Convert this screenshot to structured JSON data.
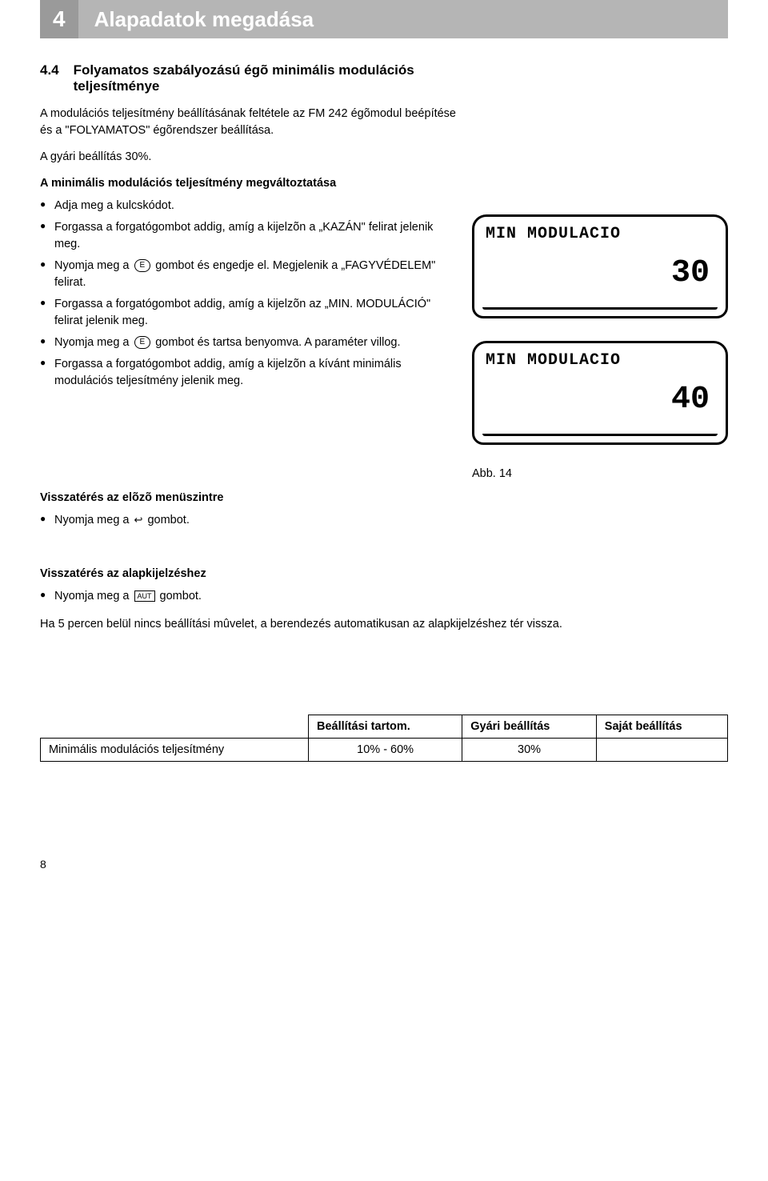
{
  "header": {
    "chapter_num": "4",
    "chapter_title": "Alapadatok megadása"
  },
  "section": {
    "num": "4.4",
    "title": "Folyamatos szabályozású égõ minimális modulációs teljesítménye"
  },
  "intro_paragraph": "A modulációs teljesítmény beállításának feltétele az FM 242 égõmodul beépítése és a \"FOLYAMATOS\" égõrendszer beállítása.",
  "factory_setting_line": "A gyári beállítás 30%.",
  "subheading_change": "A minimális modulációs teljesítmény megváltoztatása",
  "bullets_main": [
    "Adja meg a kulcskódot.",
    "Forgassa a forgatógombot addig, amíg a kijelzõn a „KAZÁN\" felirat jelenik meg.",
    "Nyomja meg a __ICON_E__ gombot és engedje el. Megjelenik a „FAGYVÉDELEM\" felirat.",
    "Forgassa a forgatógombot addig, amíg a kijelzõn az „MIN. MODULÁCIÓ\" felirat jelenik meg.",
    "Nyomja meg a __ICON_E__ gombot és tartsa benyomva. A paraméter villog.",
    "Forgassa a forgatógombot addig, amíg a kijelzõn a kívánt minimális modulációs teljesítmény jelenik meg."
  ],
  "lcd1": {
    "title": "MIN MODULACIO",
    "value": "30"
  },
  "lcd2": {
    "title": "MIN MODULACIO",
    "value": "40"
  },
  "abb_label": "Abb. 14",
  "return_prev_heading": "Visszatérés az elõzõ menüszintre",
  "return_prev_bullet": "Nyomja meg a __ICON_ESC__ gombot.",
  "return_base_heading": "Visszatérés az alapkijelzéshez",
  "return_base_bullet": "Nyomja meg a __ICON_AUT__ gombot.",
  "return_base_note": "Ha 5 percen belül nincs beállítási mûvelet, a berendezés automatikusan az alapkijelzéshez tér vissza.",
  "table": {
    "headers": [
      "",
      "Beállítási tartom.",
      "Gyári beállítás",
      "Saját beállítás"
    ],
    "row": [
      "Minimális modulációs teljesítmény",
      "10% - 60%",
      "30%",
      ""
    ]
  },
  "page_number": "8",
  "icons": {
    "e_label": "E",
    "esc_glyph": "↩",
    "aut_label": "AUT"
  },
  "colors": {
    "header_num_bg": "#9a9a9a",
    "header_title_bg": "#b5b5b5",
    "header_fg": "#ffffff",
    "text": "#000000",
    "page_bg": "#ffffff"
  }
}
